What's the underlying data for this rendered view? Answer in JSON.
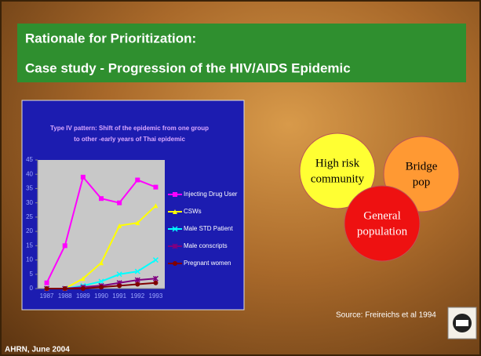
{
  "header": {
    "title": "Rationale for Prioritization:",
    "subtitle": "Case study - Progression of the HIV/AIDS Epidemic"
  },
  "chart_data": {
    "type": "line",
    "title": [
      "Type IV pattern: Shift of the epidemic from one group",
      "to other -early years of Thai epidemic"
    ],
    "categories": [
      "1987",
      "1988",
      "1989",
      "1990",
      "1991",
      "1992",
      "1993"
    ],
    "series": [
      {
        "name": "Injecting Drug User",
        "color": "#ff00ff",
        "marker": "square",
        "values": [
          2,
          15,
          39,
          31.5,
          30,
          38,
          35.5
        ]
      },
      {
        "name": "CSWs",
        "color": "#ffff00",
        "marker": "triangle",
        "values": [
          0,
          0,
          3.5,
          9,
          22,
          23,
          29
        ]
      },
      {
        "name": "Male STD Patient",
        "color": "#00ffff",
        "marker": "x",
        "values": [
          0,
          0,
          1,
          2.5,
          5,
          6,
          10
        ]
      },
      {
        "name": "Male conscripts",
        "color": "#800080",
        "marker": "star",
        "values": [
          0,
          0,
          0.5,
          1,
          2,
          3,
          3.5
        ]
      },
      {
        "name": "Pregnant women",
        "color": "#800000",
        "marker": "circle",
        "values": [
          0,
          0,
          0,
          0.5,
          1,
          1.5,
          2
        ]
      }
    ],
    "ylim": [
      0,
      45
    ],
    "yticks": [
      0,
      5,
      10,
      15,
      20,
      25,
      30,
      35,
      40,
      45
    ],
    "legend": "right"
  },
  "circles": [
    {
      "lines": [
        "High risk",
        "community"
      ],
      "color": "#ffff33"
    },
    {
      "lines": [
        "Bridge",
        "pop"
      ],
      "color": "#ff9933"
    },
    {
      "lines": [
        "General",
        "population"
      ],
      "color": "#ee1111"
    }
  ],
  "source": "Source: Freireichs et al 1994",
  "footer": "AHRN, June 2004"
}
